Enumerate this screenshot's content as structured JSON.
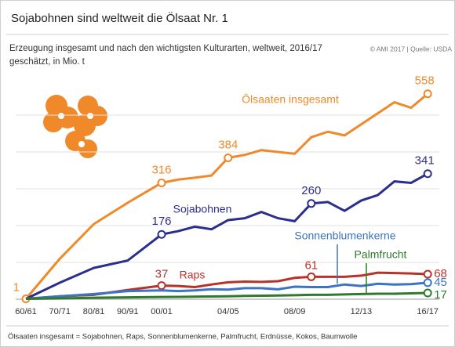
{
  "chart_data": {
    "type": "line",
    "title": "Sojabohnen sind weltweit die Ölsaat Nr. 1",
    "subtitle": "Erzeugung insgesamt und nach den wichtigsten Kulturarten, weltweit, 2016/17 geschätzt, in Mio. t",
    "source": "© AMI 2017 | Quelle: USDA",
    "footnote": "Ölsaaten insgesamt = Sojabohnen, Raps, Sonnenblumenkerne, Palmfrucht, Erdnüsse, Kokos, Baumwolle",
    "categories": [
      "60/61",
      "70/71",
      "80/81",
      "90/91",
      "00/01",
      null,
      null,
      null,
      "04/05",
      null,
      null,
      null,
      "08/09",
      null,
      null,
      null,
      "12/13",
      null,
      null,
      null,
      "16/17"
    ],
    "ylim": [
      0,
      600
    ],
    "yticks": [
      0,
      100,
      200,
      300,
      400,
      500
    ],
    "grid": true,
    "series": [
      {
        "name": "Ölsaaten insgesamt",
        "color": "#f0892a",
        "values": [
          1,
          110,
          204,
          262,
          316,
          325,
          330,
          336,
          384,
          392,
          405,
          400,
          395,
          440,
          455,
          445,
          475,
          505,
          535,
          520,
          558
        ]
      },
      {
        "name": "Sojabohnen",
        "color": "#2b2f8c",
        "values": [
          1,
          45,
          85,
          105,
          176,
          185,
          197,
          190,
          215,
          220,
          237,
          220,
          212,
          260,
          264,
          240,
          268,
          283,
          320,
          316,
          341
        ]
      },
      {
        "name": "Raps",
        "color": "#b8322a",
        "values": [
          1,
          8,
          12,
          25,
          37,
          36,
          33,
          40,
          46,
          48,
          47,
          49,
          58,
          61,
          61,
          61,
          64,
          72,
          71,
          70,
          68
        ]
      },
      {
        "name": "Sonnenblumenkerne",
        "color": "#3b74c4",
        "values": [
          1,
          8,
          14,
          22,
          24,
          22,
          24,
          27,
          26,
          30,
          30,
          27,
          34,
          33,
          33,
          40,
          36,
          42,
          40,
          41,
          45
        ]
      },
      {
        "name": "Palmfrucht",
        "color": "#2f7a2f",
        "values": [
          1,
          2,
          4,
          5,
          6,
          6.5,
          7,
          7.5,
          8,
          9,
          9.5,
          10,
          11,
          12,
          12,
          13,
          14,
          15,
          15,
          16,
          17
        ]
      }
    ]
  }
}
